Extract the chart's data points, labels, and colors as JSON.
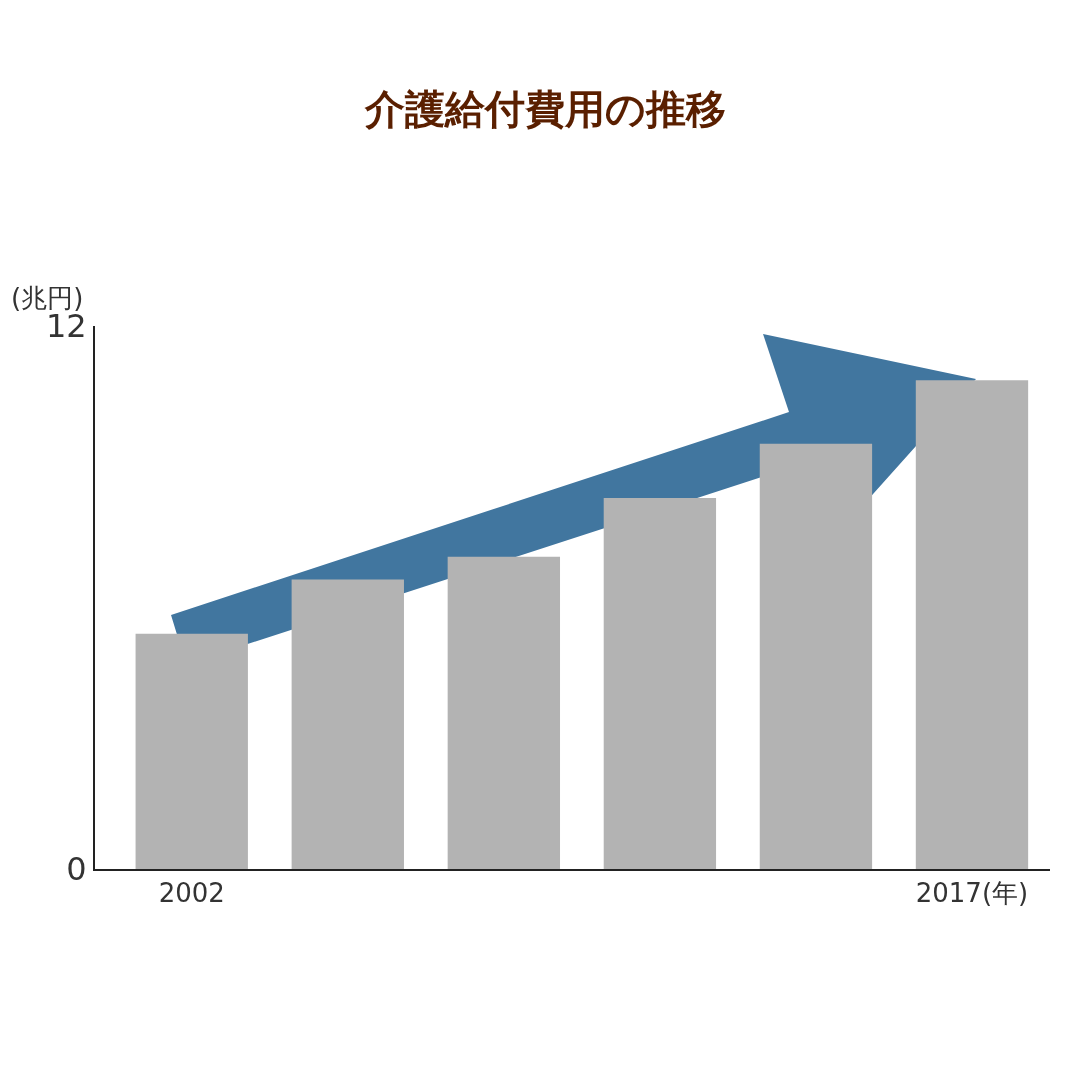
{
  "chart_data": {
    "type": "bar",
    "title": "介護給付費用の推移",
    "ylabel": "(兆円)",
    "categories": [
      "2002",
      null,
      null,
      null,
      null,
      "2017(年)"
    ],
    "values": [
      5.2,
      6.4,
      6.9,
      8.2,
      9.4,
      10.8
    ],
    "color": "#b3b3b3",
    "ylim": [
      0,
      12
    ],
    "yticks": [
      0,
      12
    ]
  }
}
